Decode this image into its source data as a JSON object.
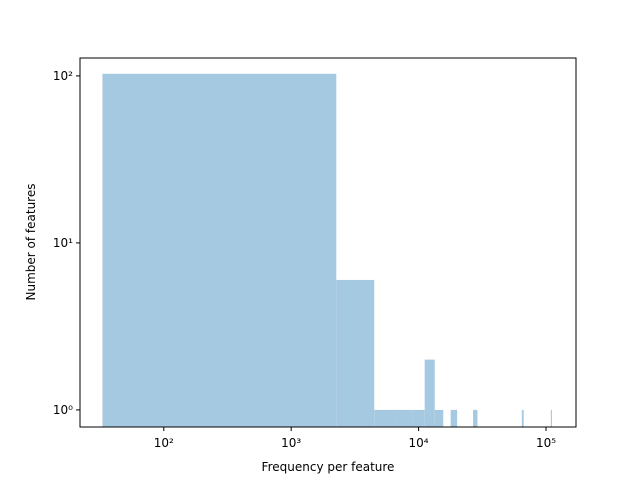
{
  "chart_data": {
    "type": "histogram",
    "xlabel": "Frequency per feature",
    "ylabel": "Number of features",
    "x_scale": "log",
    "y_scale": "log",
    "color": "#a5c9e1",
    "bins": [
      33,
      2260,
      4487,
      6714,
      8941,
      11168,
      13395,
      15622,
      17849,
      20076,
      22303,
      24530,
      26757,
      28984,
      31211,
      33438,
      35665,
      37892,
      40119,
      42346,
      44573,
      46800,
      49027,
      51254,
      53481,
      55708,
      57935,
      60162,
      62389,
      64616,
      66843,
      69070,
      71297,
      73524,
      75751,
      77978,
      80205,
      82432,
      84659,
      86886,
      89113,
      91340,
      93567,
      95794,
      98021,
      100248,
      102475,
      104702,
      106929,
      109156,
      111383
    ],
    "values": [
      103,
      6,
      1,
      1,
      1,
      2,
      1,
      0,
      1,
      0,
      0,
      0,
      1,
      0,
      0,
      0,
      0,
      0,
      0,
      0,
      0,
      0,
      0,
      0,
      0,
      0,
      0,
      0,
      0,
      1,
      0,
      0,
      0,
      0,
      0,
      0,
      0,
      0,
      0,
      0,
      0,
      0,
      0,
      0,
      0,
      0,
      0,
      0,
      0,
      1
    ],
    "xlim": [
      22,
      172000
    ],
    "ylim": [
      0.79,
      128
    ],
    "xticks": [
      {
        "value": 100,
        "label": "10²"
      },
      {
        "value": 1000,
        "label": "10³"
      },
      {
        "value": 10000,
        "label": "10⁴"
      },
      {
        "value": 100000,
        "label": "10⁵"
      }
    ],
    "yticks": [
      {
        "value": 1,
        "label": "10⁰"
      },
      {
        "value": 10,
        "label": "10¹"
      },
      {
        "value": 100,
        "label": "10²"
      }
    ]
  }
}
